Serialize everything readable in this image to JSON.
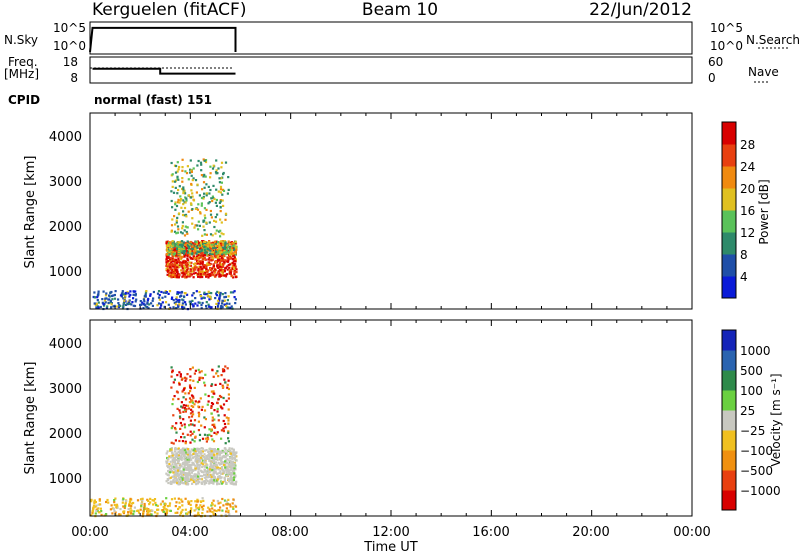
{
  "header": {
    "station": "Kerguelen (fitACF)",
    "beam": "Beam 10",
    "date": "22/Jun/2012"
  },
  "panels": {
    "nsky": {
      "label": "N.Sky",
      "ticks": [
        "10^5",
        "10^0"
      ],
      "right_ticks": [
        "10^5",
        "10^0"
      ],
      "right_label": "N.Search"
    },
    "freq": {
      "label_line1": "Freq.",
      "label_line2": "[MHz]",
      "ticks": [
        "18",
        "8"
      ],
      "right_ticks": [
        "60",
        "0"
      ],
      "right_label": "Nave"
    },
    "cpid": {
      "label": "CPID",
      "value": "normal (fast) 151"
    }
  },
  "power_panel": {
    "ylabel": "Slant Range [km]",
    "yticks": [
      "4000",
      "3000",
      "2000",
      "1000"
    ],
    "colorbar_label": "Power [dB]",
    "colorbar_ticks": [
      "28",
      "24",
      "20",
      "16",
      "12",
      "8",
      "4"
    ],
    "colors": [
      "#0a1bd8",
      "#1f4fa8",
      "#2e8a6a",
      "#5ac25a",
      "#e0c020",
      "#f08a10",
      "#e84010",
      "#d80000"
    ]
  },
  "velocity_panel": {
    "ylabel": "Slant Range [km]",
    "yticks": [
      "4000",
      "3000",
      "2000",
      "1000"
    ],
    "colorbar_label": "Velocity [m s⁻¹]",
    "colorbar_ticks": [
      "1000",
      "500",
      "100",
      "25",
      "−25",
      "−100",
      "−500",
      "−1000"
    ],
    "colors": [
      "#1424b8",
      "#2a64b0",
      "#2e8a4a",
      "#6ad040",
      "#c8c8c0",
      "#f0c020",
      "#f09010",
      "#e84010",
      "#d80000"
    ]
  },
  "x_axis": {
    "label": "Time UT",
    "ticks": [
      "00:00",
      "04:00",
      "08:00",
      "12:00",
      "16:00",
      "20:00",
      "00:00"
    ]
  },
  "chart_data": {
    "type": "heatmap",
    "title": "Kerguelen (fitACF)",
    "x_unit": "hours UT",
    "xlim": [
      0,
      24
    ],
    "ylim_km": [
      180,
      4500
    ],
    "nsky_series": {
      "x": [
        0.0,
        0.1,
        5.8,
        5.8
      ],
      "y_log": [
        0,
        4.3,
        4.3,
        0
      ]
    },
    "freq_series": {
      "x": [
        0.1,
        2.8,
        2.8,
        5.8
      ],
      "y_mhz": [
        13.5,
        13.5,
        11.5,
        11.5
      ]
    },
    "power_blobs": [
      {
        "t": [
          3.0,
          5.8
        ],
        "range_km": [
          900,
          1700
        ],
        "power_db": 24
      },
      {
        "t": [
          3.0,
          5.8
        ],
        "range_km": [
          1400,
          1700
        ],
        "power_db": 12
      },
      {
        "t": [
          3.2,
          5.5
        ],
        "range_km": [
          1800,
          3500
        ],
        "power_db": 14
      },
      {
        "t": [
          0.0,
          5.8
        ],
        "range_km": [
          200,
          600
        ],
        "power_db": 6
      }
    ],
    "velocity_blobs": [
      {
        "t": [
          3.0,
          5.8
        ],
        "range_km": [
          900,
          1700
        ],
        "velocity_ms": 0
      },
      {
        "t": [
          3.2,
          5.5
        ],
        "range_km": [
          1800,
          3500
        ],
        "velocity_ms": -300
      },
      {
        "t": [
          0.0,
          5.8
        ],
        "range_km": [
          200,
          600
        ],
        "velocity_ms": -100
      }
    ]
  }
}
